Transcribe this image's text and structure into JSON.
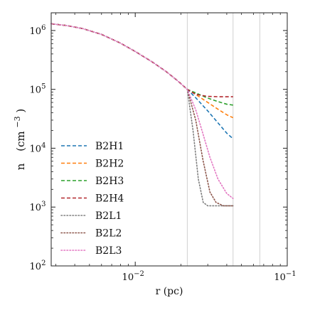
{
  "chart_data": {
    "type": "line",
    "xlabel": "r (pc)",
    "ylabel": "n",
    "ylabel_unit": "(cm",
    "ylabel_unit_exp": "−3",
    "ylabel_unit_close": ")",
    "xscale": "log",
    "yscale": "log",
    "xlim": [
      0.0028,
      0.1
    ],
    "ylim": [
      100,
      2000000
    ],
    "x_ticks": [
      {
        "value": 0.01,
        "base": "10",
        "exp": "−2"
      },
      {
        "value": 0.1,
        "base": "10",
        "exp": "−1"
      }
    ],
    "y_ticks": [
      {
        "value": 100,
        "base": "10",
        "exp": "2"
      },
      {
        "value": 1000,
        "base": "10",
        "exp": "3"
      },
      {
        "value": 10000,
        "base": "10",
        "exp": "4"
      },
      {
        "value": 100000,
        "base": "10",
        "exp": "5"
      },
      {
        "value": 1000000,
        "base": "10",
        "exp": "6"
      }
    ],
    "vertical_lines": [
      0.022,
      0.044,
      0.066
    ],
    "grid": false,
    "legend": {
      "position": "center-left"
    },
    "series": [
      {
        "name": "B2H1",
        "color": "#1f77b4",
        "style": "dashed",
        "x": [
          0.0028,
          0.0035,
          0.0045,
          0.006,
          0.008,
          0.01,
          0.013,
          0.016,
          0.019,
          0.022,
          0.025,
          0.03,
          0.035,
          0.04,
          0.044
        ],
        "y": [
          1300000,
          1220000,
          1080000,
          860000,
          610000,
          440000,
          290000,
          200000,
          140000,
          100000,
          72000,
          43000,
          27000,
          18000,
          14500
        ]
      },
      {
        "name": "B2H2",
        "color": "#ff7f0e",
        "style": "dashed",
        "x": [
          0.0028,
          0.0035,
          0.0045,
          0.006,
          0.008,
          0.01,
          0.013,
          0.016,
          0.019,
          0.022,
          0.025,
          0.03,
          0.035,
          0.04,
          0.044
        ],
        "y": [
          1300000,
          1220000,
          1080000,
          860000,
          610000,
          440000,
          290000,
          200000,
          140000,
          100000,
          82000,
          60000,
          46000,
          37000,
          33000
        ]
      },
      {
        "name": "B2H3",
        "color": "#2ca02c",
        "style": "dashed",
        "x": [
          0.0028,
          0.0035,
          0.0045,
          0.006,
          0.008,
          0.01,
          0.013,
          0.016,
          0.019,
          0.022,
          0.025,
          0.03,
          0.035,
          0.04,
          0.044
        ],
        "y": [
          1300000,
          1220000,
          1080000,
          860000,
          610000,
          440000,
          290000,
          200000,
          140000,
          100000,
          87000,
          71000,
          62000,
          56000,
          54000
        ]
      },
      {
        "name": "B2H4",
        "color": "#b2282e",
        "style": "dashed",
        "x": [
          0.0028,
          0.0035,
          0.0045,
          0.006,
          0.008,
          0.01,
          0.013,
          0.016,
          0.019,
          0.022,
          0.025,
          0.03,
          0.035,
          0.04,
          0.044
        ],
        "y": [
          1300000,
          1220000,
          1080000,
          860000,
          610000,
          440000,
          290000,
          200000,
          140000,
          100000,
          82000,
          76000,
          75000,
          75000,
          75000
        ]
      },
      {
        "name": "B2L1",
        "color": "#7f7f7f",
        "style": "dotted",
        "x": [
          0.0028,
          0.0035,
          0.0045,
          0.006,
          0.008,
          0.01,
          0.013,
          0.016,
          0.019,
          0.022,
          0.024,
          0.026,
          0.028,
          0.03,
          0.035,
          0.044
        ],
        "y": [
          1300000,
          1220000,
          1080000,
          860000,
          610000,
          440000,
          290000,
          200000,
          140000,
          100000,
          20000,
          3000,
          1200,
          1050,
          1050,
          1050
        ]
      },
      {
        "name": "B2L2",
        "color": "#8c564b",
        "style": "dotted",
        "x": [
          0.0028,
          0.0035,
          0.0045,
          0.006,
          0.008,
          0.01,
          0.013,
          0.016,
          0.019,
          0.022,
          0.025,
          0.028,
          0.031,
          0.034,
          0.038,
          0.044
        ],
        "y": [
          1300000,
          1220000,
          1080000,
          860000,
          610000,
          440000,
          290000,
          200000,
          140000,
          100000,
          30000,
          6000,
          1800,
          1200,
          1050,
          1050
        ]
      },
      {
        "name": "B2L3",
        "color": "#e377c2",
        "style": "dotted",
        "x": [
          0.0028,
          0.0035,
          0.0045,
          0.006,
          0.008,
          0.01,
          0.013,
          0.016,
          0.019,
          0.022,
          0.025,
          0.028,
          0.031,
          0.035,
          0.04,
          0.044
        ],
        "y": [
          1300000,
          1220000,
          1080000,
          860000,
          610000,
          440000,
          290000,
          200000,
          140000,
          100000,
          45000,
          17000,
          7000,
          3000,
          1700,
          1400
        ]
      }
    ]
  }
}
